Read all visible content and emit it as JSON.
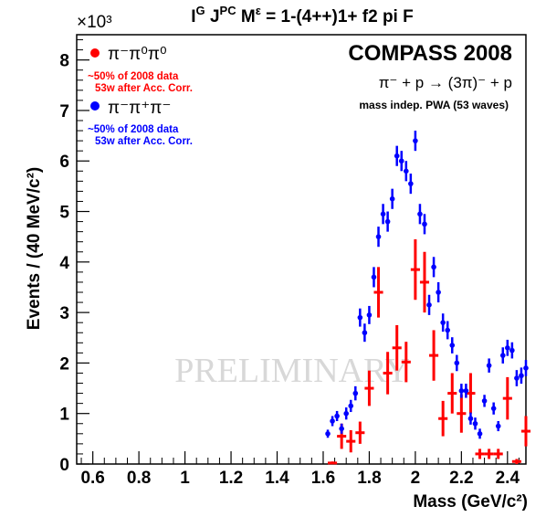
{
  "chart_data": {
    "type": "scatter",
    "title": {
      "prefix": "I",
      "sup1": "G",
      "mid": " J",
      "sup2": "PC",
      "mid2": " M",
      "sup3": "ε",
      "rest": " = 1-(4++)1+ f2 pi F"
    },
    "xlabel": "Mass (GeV/c²)",
    "ylabel": "Events / (40 MeV/c²)",
    "y_multiplier": "×10³",
    "xlim": [
      0.53,
      2.48
    ],
    "ylim": [
      0,
      8.5
    ],
    "x_ticks": [
      "0.6",
      "0.8",
      "1",
      "1.2",
      "1.4",
      "1.6",
      "1.8",
      "2",
      "2.2",
      "2.4"
    ],
    "x_tick_values": [
      0.6,
      0.8,
      1.0,
      1.2,
      1.4,
      1.6,
      1.8,
      2.0,
      2.2,
      2.4
    ],
    "y_ticks": [
      "0",
      "1",
      "2",
      "3",
      "4",
      "5",
      "6",
      "7",
      "8"
    ],
    "y_tick_values": [
      0,
      1,
      2,
      3,
      4,
      5,
      6,
      7,
      8
    ],
    "experiment": "COMPASS 2008",
    "reaction": "π⁻ + p  →  (3π)⁻ + p",
    "analysis": "mass indep. PWA (53 waves)",
    "watermark": "PRELIMINARY",
    "legend_position": "top-left",
    "series": [
      {
        "name": "π⁻π⁰π⁰",
        "note1": "~50% of 2008 data",
        "note2": "53w after Acc. Corr.",
        "color": "#ff0000",
        "marker": "bar",
        "points": [
          [
            1.64,
            0.02,
            0.03
          ],
          [
            1.68,
            0.55,
            0.25
          ],
          [
            1.72,
            0.45,
            0.22
          ],
          [
            1.76,
            0.62,
            0.22
          ],
          [
            1.8,
            1.5,
            0.35
          ],
          [
            1.84,
            3.4,
            0.5
          ],
          [
            1.88,
            1.8,
            0.42
          ],
          [
            1.92,
            2.3,
            0.45
          ],
          [
            1.96,
            2.02,
            0.4
          ],
          [
            2.0,
            3.85,
            0.6
          ],
          [
            2.04,
            3.6,
            0.6
          ],
          [
            2.08,
            2.15,
            0.5
          ],
          [
            2.12,
            0.9,
            0.35
          ],
          [
            2.16,
            1.4,
            0.4
          ],
          [
            2.2,
            1.0,
            0.38
          ],
          [
            2.24,
            1.4,
            0.4
          ],
          [
            2.28,
            0.2,
            0.1
          ],
          [
            2.32,
            0.2,
            0.1
          ],
          [
            2.36,
            0.2,
            0.1
          ],
          [
            2.4,
            1.3,
            0.42
          ],
          [
            2.44,
            0.05,
            0.05
          ],
          [
            2.48,
            0.65,
            0.3
          ]
        ]
      },
      {
        "name": "π⁻π⁺π⁻",
        "note1": "~50% of 2008 data",
        "note2": "53w after Acc. Corr.",
        "color": "#0000ff",
        "marker": "circle",
        "points": [
          [
            1.62,
            0.6,
            0.08
          ],
          [
            1.64,
            0.85,
            0.1
          ],
          [
            1.66,
            0.95,
            0.1
          ],
          [
            1.68,
            0.7,
            0.1
          ],
          [
            1.7,
            1.0,
            0.12
          ],
          [
            1.72,
            1.15,
            0.12
          ],
          [
            1.74,
            1.4,
            0.14
          ],
          [
            1.76,
            2.9,
            0.18
          ],
          [
            1.78,
            2.6,
            0.18
          ],
          [
            1.8,
            2.95,
            0.18
          ],
          [
            1.82,
            3.7,
            0.2
          ],
          [
            1.84,
            4.5,
            0.2
          ],
          [
            1.86,
            4.95,
            0.2
          ],
          [
            1.88,
            4.8,
            0.2
          ],
          [
            1.9,
            5.25,
            0.2
          ],
          [
            1.92,
            6.1,
            0.2
          ],
          [
            1.94,
            6.0,
            0.2
          ],
          [
            1.96,
            5.8,
            0.2
          ],
          [
            1.98,
            5.55,
            0.2
          ],
          [
            2.0,
            6.4,
            0.2
          ],
          [
            2.02,
            4.95,
            0.2
          ],
          [
            2.04,
            4.75,
            0.2
          ],
          [
            2.06,
            3.15,
            0.2
          ],
          [
            2.08,
            3.9,
            0.2
          ],
          [
            2.1,
            3.4,
            0.2
          ],
          [
            2.12,
            2.8,
            0.18
          ],
          [
            2.14,
            2.65,
            0.18
          ],
          [
            2.16,
            2.35,
            0.16
          ],
          [
            2.18,
            2.0,
            0.16
          ],
          [
            2.2,
            1.45,
            0.14
          ],
          [
            2.22,
            1.45,
            0.14
          ],
          [
            2.24,
            0.9,
            0.12
          ],
          [
            2.26,
            0.8,
            0.12
          ],
          [
            2.28,
            0.6,
            0.1
          ],
          [
            2.3,
            1.25,
            0.12
          ],
          [
            2.32,
            1.95,
            0.14
          ],
          [
            2.34,
            1.1,
            0.12
          ],
          [
            2.36,
            0.75,
            0.1
          ],
          [
            2.38,
            2.15,
            0.16
          ],
          [
            2.4,
            2.3,
            0.16
          ],
          [
            2.42,
            2.25,
            0.16
          ],
          [
            2.44,
            1.7,
            0.16
          ],
          [
            2.46,
            1.75,
            0.16
          ],
          [
            2.48,
            1.9,
            0.16
          ]
        ]
      }
    ]
  }
}
